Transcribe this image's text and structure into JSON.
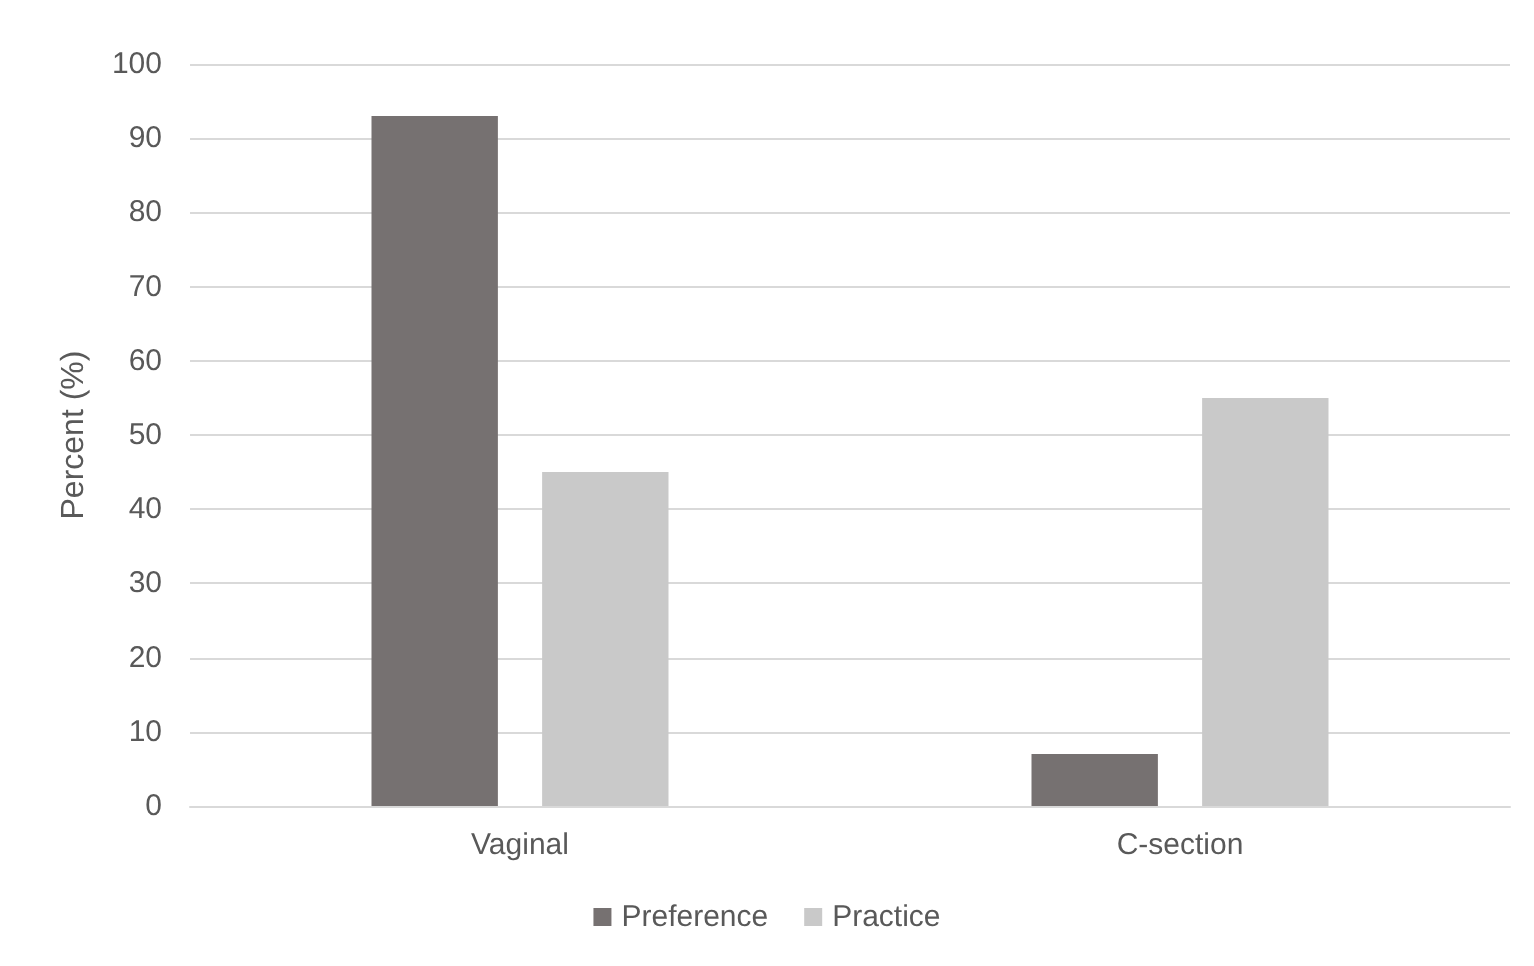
{
  "chart_data": {
    "type": "bar",
    "ylabel": "Percent (%)",
    "categories": [
      "Vaginal",
      "C-section"
    ],
    "series": [
      {
        "name": "Preference",
        "color": "#767171",
        "values": [
          93,
          7
        ]
      },
      {
        "name": "Practice",
        "color": "#c9c9c9",
        "values": [
          45,
          55
        ]
      }
    ],
    "ylim": [
      0,
      100
    ],
    "yticks": [
      0,
      10,
      20,
      30,
      40,
      50,
      60,
      70,
      80,
      90,
      100
    ],
    "grid": "y",
    "legend": "bottom"
  }
}
